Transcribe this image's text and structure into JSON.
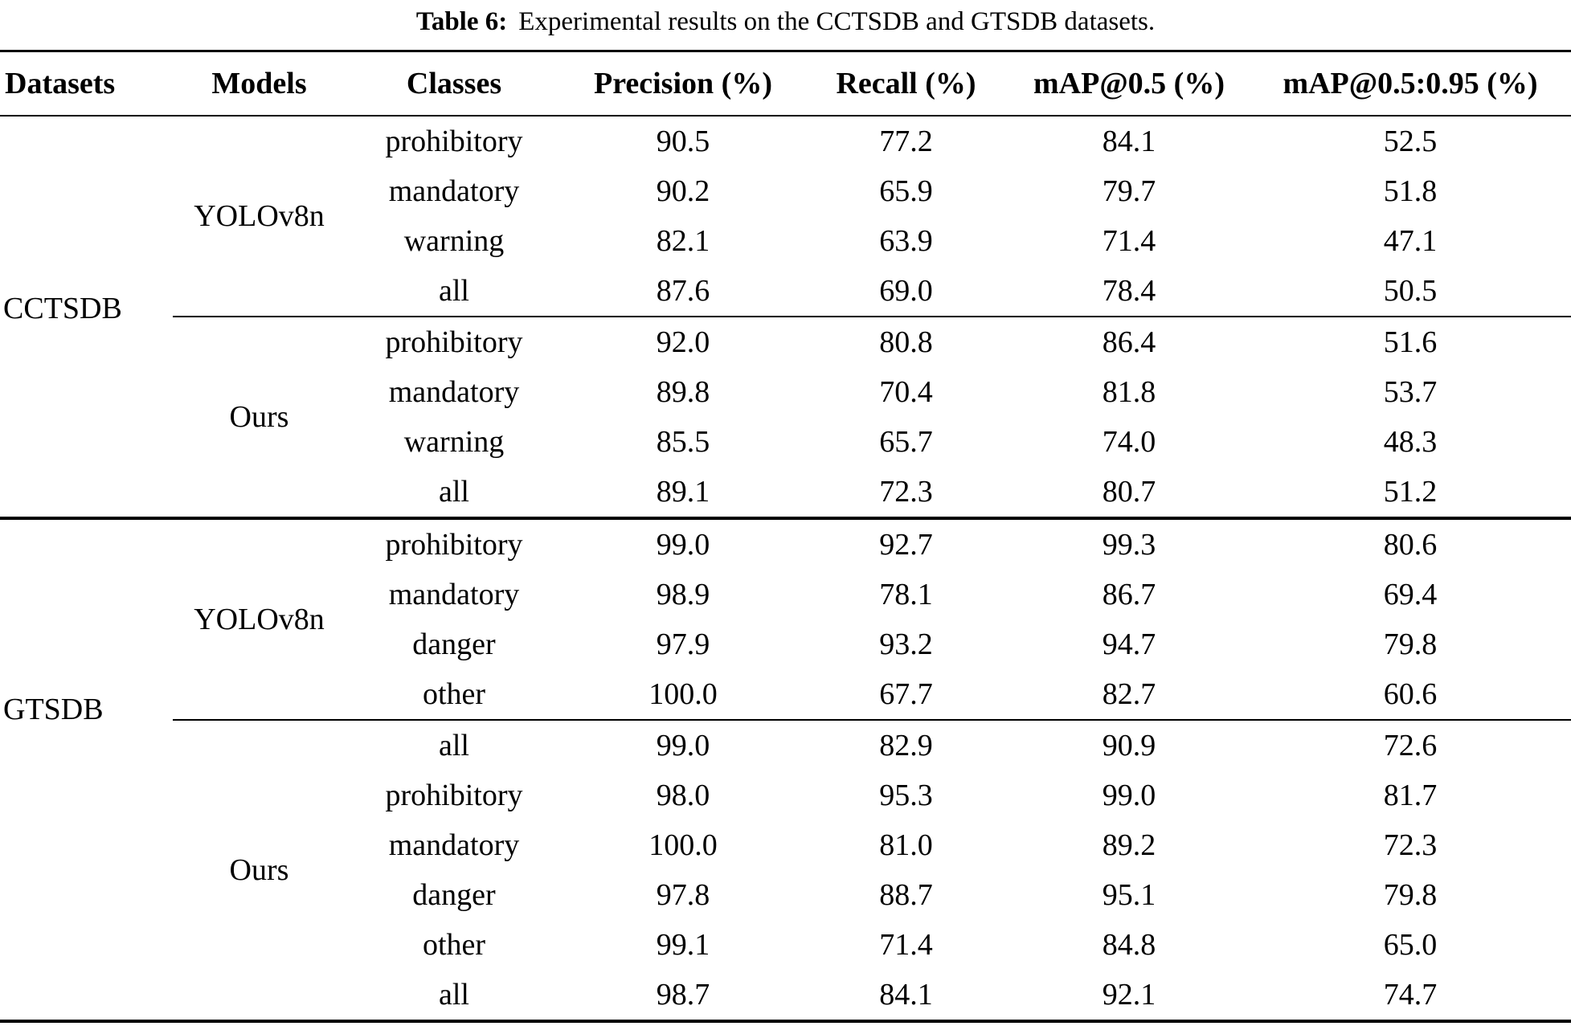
{
  "title": {
    "label": "Table 6:",
    "text": "Experimental results on the CCTSDB and GTSDB datasets."
  },
  "table": {
    "headers": [
      "Datasets",
      "Models",
      "Classes",
      "Precision (%)",
      "Recall (%)",
      "mAP@0.5 (%)",
      "mAP@0.5:0.95 (%)"
    ],
    "sections": [
      {
        "dataset": "CCTSDB",
        "groups": [
          {
            "model": "YOLOv8n",
            "rows": [
              [
                "prohibitory",
                "90.5",
                "77.2",
                "84.1",
                "52.5"
              ],
              [
                "mandatory",
                "90.2",
                "65.9",
                "79.7",
                "51.8"
              ],
              [
                "warning",
                "82.1",
                "63.9",
                "71.4",
                "47.1"
              ],
              [
                "all",
                "87.6",
                "69.0",
                "78.4",
                "50.5"
              ]
            ]
          },
          {
            "model": "Ours",
            "rows": [
              [
                "prohibitory",
                "92.0",
                "80.8",
                "86.4",
                "51.6"
              ],
              [
                "mandatory",
                "89.8",
                "70.4",
                "81.8",
                "53.7"
              ],
              [
                "warning",
                "85.5",
                "65.7",
                "74.0",
                "48.3"
              ],
              [
                "all",
                "89.1",
                "72.3",
                "80.7",
                "51.2"
              ]
            ]
          }
        ]
      },
      {
        "dataset": "GTSDB",
        "groups": [
          {
            "model": "YOLOv8n",
            "rows": [
              [
                "prohibitory",
                "99.0",
                "92.7",
                "99.3",
                "80.6"
              ],
              [
                "mandatory",
                "98.9",
                "78.1",
                "86.7",
                "69.4"
              ],
              [
                "danger",
                "97.9",
                "93.2",
                "94.7",
                "79.8"
              ],
              [
                "other",
                "100.0",
                "67.7",
                "82.7",
                "60.6"
              ]
            ]
          },
          {
            "model": "Ours",
            "rows": [
              [
                "all",
                "99.0",
                "82.9",
                "90.9",
                "72.6"
              ],
              [
                "prohibitory",
                "98.0",
                "95.3",
                "99.0",
                "81.7"
              ],
              [
                "mandatory",
                "100.0",
                "81.0",
                "89.2",
                "72.3"
              ],
              [
                "danger",
                "97.8",
                "88.7",
                "95.1",
                "79.8"
              ],
              [
                "other",
                "99.1",
                "71.4",
                "84.8",
                "65.0"
              ],
              [
                "all",
                "98.7",
                "84.1",
                "92.1",
                "74.7"
              ]
            ]
          }
        ]
      }
    ]
  }
}
